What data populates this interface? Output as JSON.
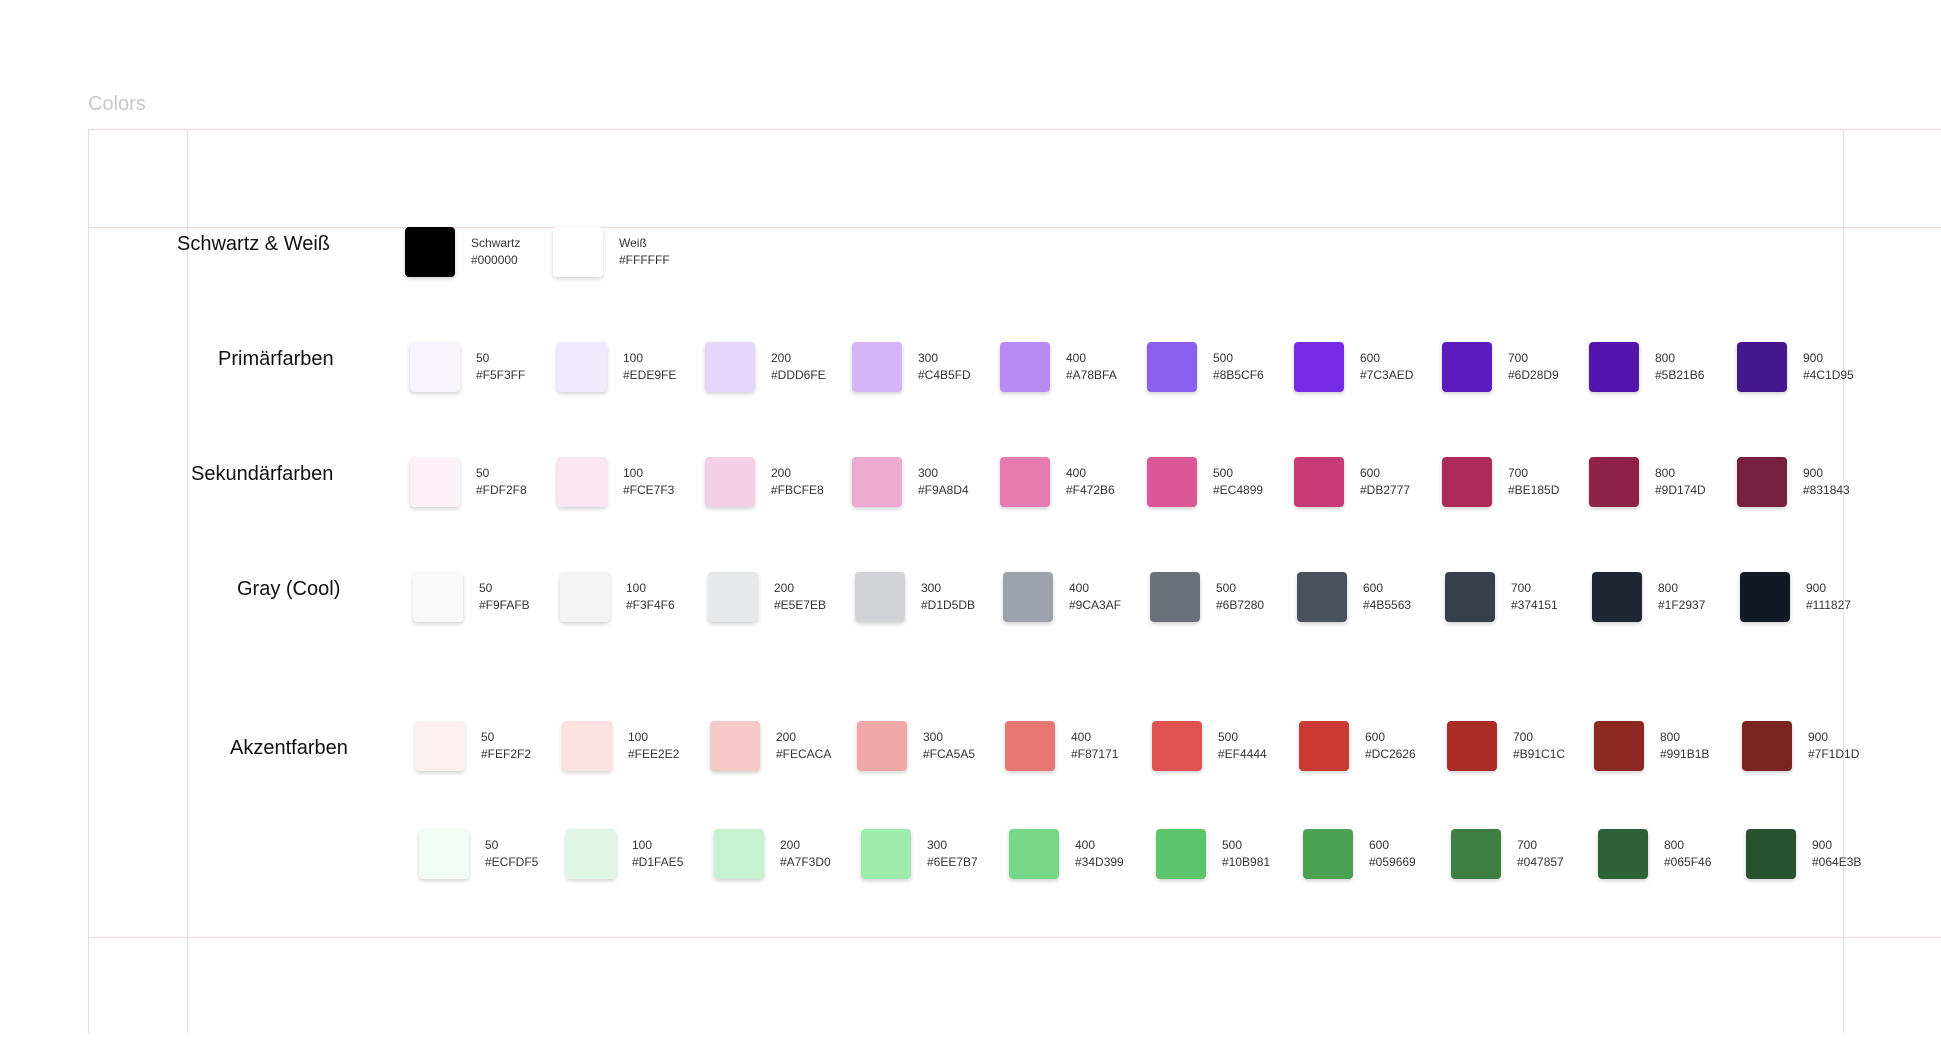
{
  "page_title": "Colors",
  "black_white": {
    "label": "Schwartz & Weiß",
    "swatches": [
      {
        "name": "Schwartz",
        "hex": "#000000",
        "fill": "#000000"
      },
      {
        "name": "Weiß",
        "hex": "#FFFFFF",
        "fill": "#FFFFFF"
      }
    ]
  },
  "palettes": [
    {
      "label": "Primärfarben",
      "swatches": [
        {
          "name": "50",
          "hex": "#F5F3FF",
          "fill": "#F8F4FE"
        },
        {
          "name": "100",
          "hex": "#EDE9FE",
          "fill": "#F0EAFE"
        },
        {
          "name": "200",
          "hex": "#DDD6FE",
          "fill": "#E4D6FC"
        },
        {
          "name": "300",
          "hex": "#C4B5FD",
          "fill": "#D4B6F8"
        },
        {
          "name": "400",
          "hex": "#A78BFA",
          "fill": "#B98AF4"
        },
        {
          "name": "500",
          "hex": "#8B5CF6",
          "fill": "#8A5FEE"
        },
        {
          "name": "600",
          "hex": "#7C3AED",
          "fill": "#762BE4"
        },
        {
          "name": "700",
          "hex": "#6D28D9",
          "fill": "#5B1BBE"
        },
        {
          "name": "800",
          "hex": "#5B21B6",
          "fill": "#5216AC"
        },
        {
          "name": "900",
          "hex": "#4C1D95",
          "fill": "#46168C"
        }
      ]
    },
    {
      "label": "Sekundärfarben",
      "swatches": [
        {
          "name": "50",
          "hex": "#FDF2F8",
          "fill": "#FBF1F6"
        },
        {
          "name": "100",
          "hex": "#FCE7F3",
          "fill": "#F9E6F0"
        },
        {
          "name": "200",
          "hex": "#FBCFE8",
          "fill": "#F4D0E4"
        },
        {
          "name": "300",
          "hex": "#F9A8D4",
          "fill": "#ECAAD0"
        },
        {
          "name": "400",
          "hex": "#F472B6",
          "fill": "#E67BB0"
        },
        {
          "name": "500",
          "hex": "#EC4899",
          "fill": "#DB5796"
        },
        {
          "name": "600",
          "hex": "#DB2777",
          "fill": "#C73B74"
        },
        {
          "name": "700",
          "hex": "#BE185D",
          "fill": "#AE2A58"
        },
        {
          "name": "800",
          "hex": "#9D174D",
          "fill": "#8E2249"
        },
        {
          "name": "900",
          "hex": "#831843",
          "fill": "#771F3E"
        }
      ]
    },
    {
      "label": "Gray (Cool)",
      "swatches": [
        {
          "name": "50",
          "hex": "#F9FAFB",
          "fill": "#F8F8F9"
        },
        {
          "name": "100",
          "hex": "#F3F4F6",
          "fill": "#F3F3F4"
        },
        {
          "name": "200",
          "hex": "#E5E7EB",
          "fill": "#E6E7E9"
        },
        {
          "name": "300",
          "hex": "#D1D5DB",
          "fill": "#D1D3D7"
        },
        {
          "name": "400",
          "hex": "#9CA3AF",
          "fill": "#9DA1AA"
        },
        {
          "name": "500",
          "hex": "#6B7280",
          "fill": "#6C707A"
        },
        {
          "name": "600",
          "hex": "#4B5563",
          "fill": "#4B515C"
        },
        {
          "name": "700",
          "hex": "#374151",
          "fill": "#383E4A"
        },
        {
          "name": "800",
          "hex": "#1F2937",
          "fill": "#1F2532"
        },
        {
          "name": "900",
          "hex": "#111827",
          "fill": "#131826"
        }
      ]
    },
    {
      "label": "Akzentfarben",
      "swatches": [
        {
          "name": "50",
          "hex": "#FEF2F2",
          "fill": "#FCF1F1"
        },
        {
          "name": "100",
          "hex": "#FEE2E2",
          "fill": "#FAE1E1"
        },
        {
          "name": "200",
          "hex": "#FECACA",
          "fill": "#F4C9C8"
        },
        {
          "name": "300",
          "hex": "#FCA5A5",
          "fill": "#EFA8A6"
        },
        {
          "name": "400",
          "hex": "#F87171",
          "fill": "#E87773"
        },
        {
          "name": "500",
          "hex": "#EF4444",
          "fill": "#E0524F"
        },
        {
          "name": "600",
          "hex": "#DC2626",
          "fill": "#CB3A32"
        },
        {
          "name": "700",
          "hex": "#B91C1C",
          "fill": "#AA2C26"
        },
        {
          "name": "800",
          "hex": "#991B1B",
          "fill": "#8D2722"
        },
        {
          "name": "900",
          "hex": "#7F1D1D",
          "fill": "#7A2521"
        }
      ]
    },
    {
      "label": "",
      "swatches": [
        {
          "name": "50",
          "hex": "#ECFDF5",
          "fill": "#F2FCF5"
        },
        {
          "name": "100",
          "hex": "#D1FAE5",
          "fill": "#E0F7E7"
        },
        {
          "name": "200",
          "hex": "#A7F3D0",
          "fill": "#C6F2D1"
        },
        {
          "name": "300",
          "hex": "#6EE7B7",
          "fill": "#9DEBAD"
        },
        {
          "name": "400",
          "hex": "#34D399",
          "fill": "#76D886"
        },
        {
          "name": "500",
          "hex": "#10B981",
          "fill": "#5CC46A"
        },
        {
          "name": "600",
          "hex": "#059669",
          "fill": "#4AA252"
        },
        {
          "name": "700",
          "hex": "#047857",
          "fill": "#3C7E43"
        },
        {
          "name": "800",
          "hex": "#065F46",
          "fill": "#2E6238"
        },
        {
          "name": "900",
          "hex": "#064E3B",
          "fill": "#28522F"
        }
      ]
    }
  ]
}
